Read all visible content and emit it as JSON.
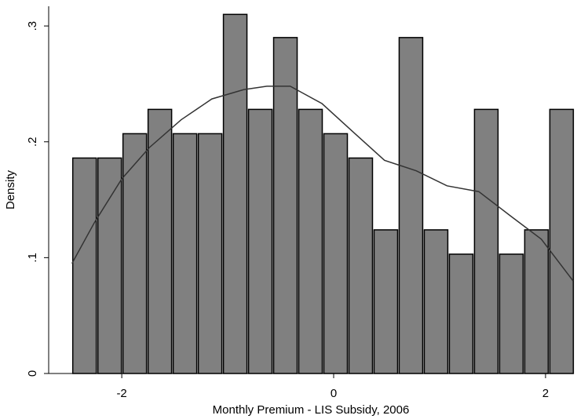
{
  "chart_data": {
    "type": "histogram",
    "xlabel": "Monthly Premium - LIS Subsidy, 2006",
    "ylabel": "Density",
    "bins": [
      -2.47,
      -2.233,
      -1.996,
      -1.759,
      -1.522,
      -1.285,
      -1.048,
      -0.811,
      -0.574,
      -0.337,
      -0.1,
      0.137,
      0.374,
      0.611,
      0.848,
      1.085,
      1.322,
      1.559,
      1.796,
      2.033,
      2.27
    ],
    "values": [
      0.186,
      0.186,
      0.207,
      0.228,
      0.207,
      0.207,
      0.31,
      0.228,
      0.29,
      0.228,
      0.207,
      0.186,
      0.124,
      0.29,
      0.124,
      0.103,
      0.228,
      0.103,
      0.124,
      0.228
    ],
    "color": "#808080",
    "density": {
      "x": [
        -2.47,
        -2.26,
        -2.0,
        -1.74,
        -1.44,
        -1.15,
        -0.85,
        -0.63,
        -0.41,
        -0.11,
        0.19,
        0.48,
        0.78,
        1.07,
        1.37,
        1.67,
        1.96,
        2.26
      ],
      "values": [
        0.095,
        0.13,
        0.168,
        0.195,
        0.219,
        0.237,
        0.245,
        0.248,
        0.248,
        0.233,
        0.208,
        0.184,
        0.175,
        0.162,
        0.157,
        0.136,
        0.116,
        0.08
      ],
      "color": "#333333"
    },
    "xlim": [
      -2.69,
      2.26
    ],
    "ylim": [
      0,
      0.317
    ],
    "xticks": [
      -2,
      0,
      2
    ],
    "yticks": [
      0,
      {
        "value": 0.1,
        "label": ".1"
      },
      {
        "value": 0.2,
        "label": ".2"
      },
      {
        "value": 0.3,
        "label": ".3"
      }
    ]
  }
}
